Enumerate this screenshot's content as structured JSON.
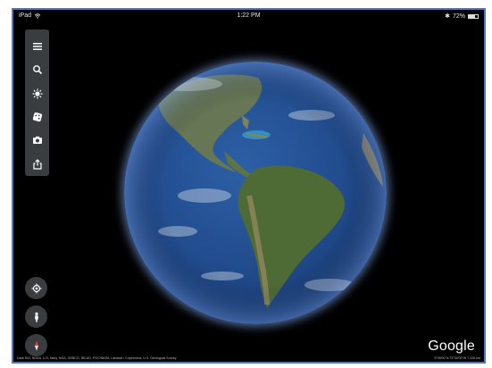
{
  "status_bar": {
    "device": "iPad",
    "time": "1:22 PM",
    "battery": "72%",
    "battery_level": 0.72
  },
  "toolbar": {
    "items": [
      {
        "name": "menu",
        "icon": "menu-icon"
      },
      {
        "name": "search",
        "icon": "search-icon"
      },
      {
        "name": "voyager",
        "icon": "voyager-icon"
      },
      {
        "name": "feeling-lucky",
        "icon": "dice-icon"
      },
      {
        "name": "screenshot",
        "icon": "camera-icon"
      },
      {
        "name": "share",
        "icon": "share-icon"
      }
    ]
  },
  "controls": {
    "my_location": "location-target-icon",
    "street_view": "pegman-icon",
    "compass": "compass-icon"
  },
  "branding": {
    "logo": "Google"
  },
  "footer": {
    "attribution": "Data SIO, NOAA, U.S. Navy, NGA, GEBCO, IBCAO, PGC/NASA, Landsat / Copernicus, U.S. Geological Survey",
    "coordinates": "5°05'00\"N 75°00'00\"W 7,426 km"
  },
  "colors": {
    "frame": "#4a78c2",
    "toolbar_bg": "#3a3d40",
    "compass_red": "#e53935"
  }
}
